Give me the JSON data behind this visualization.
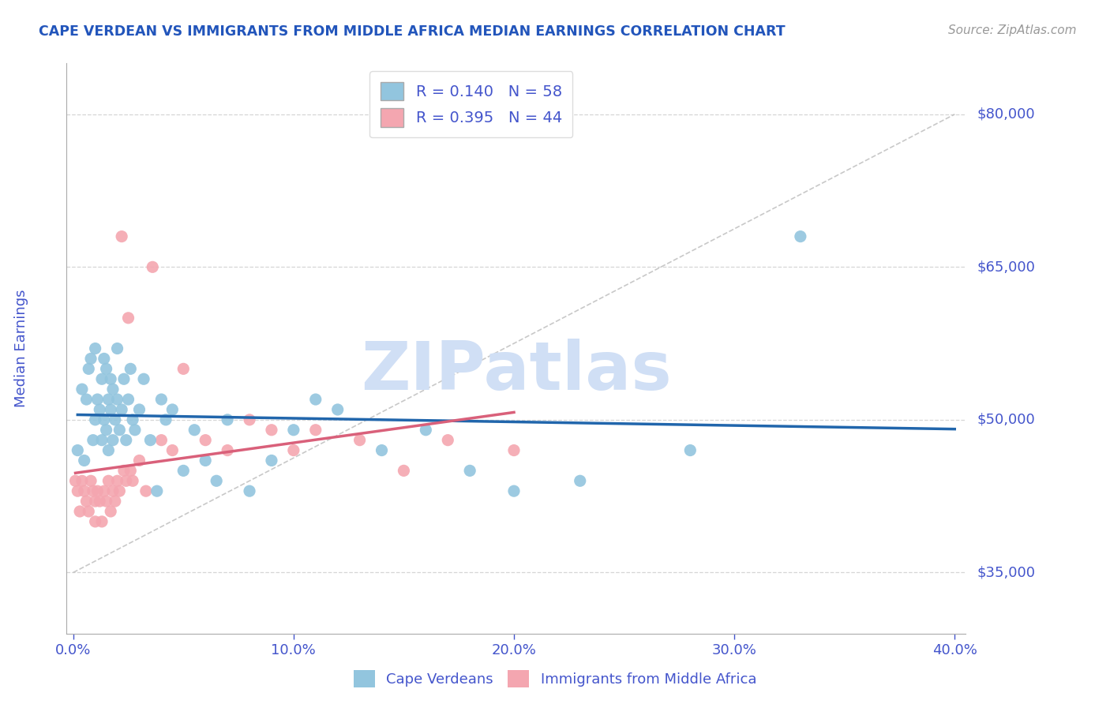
{
  "title": "CAPE VERDEAN VS IMMIGRANTS FROM MIDDLE AFRICA MEDIAN EARNINGS CORRELATION CHART",
  "source": "Source: ZipAtlas.com",
  "ylabel": "Median Earnings",
  "yticks": [
    35000,
    50000,
    65000,
    80000
  ],
  "ytick_labels": [
    "$35,000",
    "$50,000",
    "$65,000",
    "$80,000"
  ],
  "xlim": [
    -0.003,
    0.405
  ],
  "ylim": [
    29000,
    85000
  ],
  "xtick_labels": [
    "0.0%",
    "10.0%",
    "20.0%",
    "30.0%",
    "40.0%"
  ],
  "xtick_vals": [
    0.0,
    0.1,
    0.2,
    0.3,
    0.4
  ],
  "blue_R": 0.14,
  "blue_N": 58,
  "pink_R": 0.395,
  "pink_N": 44,
  "blue_color": "#92C5DE",
  "pink_color": "#F4A6B0",
  "blue_line_color": "#2166AC",
  "pink_line_color": "#D9607A",
  "title_color": "#2255bb",
  "axis_color": "#4455cc",
  "source_color": "#999999",
  "watermark_color": "#d0dff5",
  "grid_color": "#cccccc",
  "blue_scatter_x": [
    0.002,
    0.004,
    0.005,
    0.006,
    0.007,
    0.008,
    0.009,
    0.01,
    0.01,
    0.011,
    0.012,
    0.013,
    0.013,
    0.014,
    0.014,
    0.015,
    0.015,
    0.016,
    0.016,
    0.017,
    0.017,
    0.018,
    0.018,
    0.019,
    0.02,
    0.02,
    0.021,
    0.022,
    0.023,
    0.024,
    0.025,
    0.026,
    0.027,
    0.028,
    0.03,
    0.032,
    0.035,
    0.038,
    0.04,
    0.042,
    0.045,
    0.05,
    0.055,
    0.06,
    0.065,
    0.07,
    0.08,
    0.09,
    0.1,
    0.11,
    0.12,
    0.14,
    0.16,
    0.18,
    0.2,
    0.23,
    0.28,
    0.33
  ],
  "blue_scatter_y": [
    47000,
    53000,
    46000,
    52000,
    55000,
    56000,
    48000,
    57000,
    50000,
    52000,
    51000,
    48000,
    54000,
    56000,
    50000,
    49000,
    55000,
    52000,
    47000,
    54000,
    51000,
    48000,
    53000,
    50000,
    57000,
    52000,
    49000,
    51000,
    54000,
    48000,
    52000,
    55000,
    50000,
    49000,
    51000,
    54000,
    48000,
    43000,
    52000,
    50000,
    51000,
    45000,
    49000,
    46000,
    44000,
    50000,
    43000,
    46000,
    49000,
    52000,
    51000,
    47000,
    49000,
    45000,
    43000,
    44000,
    47000,
    68000
  ],
  "pink_scatter_x": [
    0.001,
    0.002,
    0.003,
    0.004,
    0.005,
    0.006,
    0.007,
    0.008,
    0.009,
    0.01,
    0.01,
    0.011,
    0.012,
    0.013,
    0.014,
    0.015,
    0.016,
    0.017,
    0.018,
    0.019,
    0.02,
    0.021,
    0.022,
    0.023,
    0.024,
    0.025,
    0.026,
    0.027,
    0.03,
    0.033,
    0.036,
    0.04,
    0.045,
    0.05,
    0.06,
    0.07,
    0.08,
    0.09,
    0.1,
    0.11,
    0.13,
    0.15,
    0.17,
    0.2
  ],
  "pink_scatter_y": [
    44000,
    43000,
    41000,
    44000,
    43000,
    42000,
    41000,
    44000,
    43000,
    42000,
    40000,
    43000,
    42000,
    40000,
    43000,
    42000,
    44000,
    41000,
    43000,
    42000,
    44000,
    43000,
    68000,
    45000,
    44000,
    60000,
    45000,
    44000,
    46000,
    43000,
    65000,
    48000,
    47000,
    55000,
    48000,
    47000,
    50000,
    49000,
    47000,
    49000,
    48000,
    45000,
    48000,
    47000
  ],
  "ref_line_x": [
    0.0,
    0.4
  ],
  "ref_line_y": [
    35000,
    80000
  ]
}
